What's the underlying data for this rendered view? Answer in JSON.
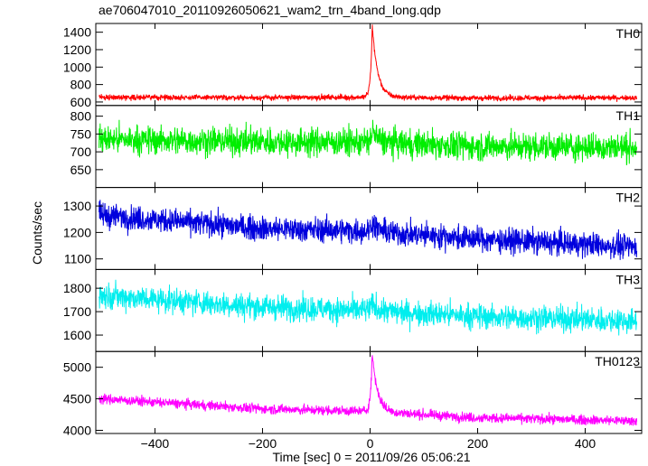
{
  "chart_data": {
    "type": "line",
    "title": "ae706047010_20110926050621_wam2_trn_4band_long.qdp",
    "xlabel": "Time [sec] 0 = 2011/09/26 05:06:21",
    "ylabel": "Counts/sec",
    "xlim": [
      -510,
      505
    ],
    "xticks": [
      -400,
      -200,
      0,
      200,
      400
    ],
    "xtick_labels": [
      "−400",
      "−200",
      "0",
      "200",
      "400"
    ],
    "panels": [
      {
        "name": "TH0",
        "color": "#ff0000",
        "ylim": [
          560,
          1500
        ],
        "yticks": [
          600,
          800,
          1000,
          1200,
          1400
        ],
        "baseline": [
          [
            -500,
            655
          ],
          [
            -200,
            650
          ],
          [
            0,
            655
          ],
          [
            200,
            645
          ],
          [
            495,
            650
          ]
        ],
        "noise": 22,
        "burst": {
          "peak_t": 4,
          "peak_value": 1480,
          "rise_sec": 3,
          "decay_sec": 10
        }
      },
      {
        "name": "TH1",
        "color": "#00ee00",
        "ylim": [
          600,
          830
        ],
        "yticks": [
          650,
          700,
          750,
          800
        ],
        "baseline": [
          [
            -500,
            735
          ],
          [
            -200,
            728
          ],
          [
            0,
            727
          ],
          [
            200,
            715
          ],
          [
            495,
            713
          ]
        ],
        "noise": 28,
        "burst": {
          "peak_t": 4,
          "peak_value": 760,
          "rise_sec": 3,
          "decay_sec": 10
        }
      },
      {
        "name": "TH2",
        "color": "#0000dd",
        "ylim": [
          1060,
          1370
        ],
        "yticks": [
          1100,
          1200,
          1300
        ],
        "baseline": [
          [
            -500,
            1265
          ],
          [
            -200,
            1215
          ],
          [
            0,
            1205
          ],
          [
            200,
            1175
          ],
          [
            495,
            1145
          ]
        ],
        "noise": 33,
        "burst": {
          "peak_t": 4,
          "peak_value": 1240,
          "rise_sec": 3,
          "decay_sec": 10
        }
      },
      {
        "name": "TH3",
        "color": "#00eeee",
        "ylim": [
          1530,
          1880
        ],
        "yticks": [
          1600,
          1700,
          1800
        ],
        "baseline": [
          [
            -500,
            1770
          ],
          [
            -200,
            1720
          ],
          [
            0,
            1705
          ],
          [
            200,
            1680
          ],
          [
            495,
            1660
          ]
        ],
        "noise": 38,
        "burst": {
          "peak_t": 4,
          "peak_value": 1730,
          "rise_sec": 3,
          "decay_sec": 10
        }
      },
      {
        "name": "TH0123",
        "color": "#ff00ff",
        "ylim": [
          3950,
          5250
        ],
        "yticks": [
          4000,
          4500,
          5000
        ],
        "baseline": [
          [
            -500,
            4500
          ],
          [
            -200,
            4340
          ],
          [
            0,
            4300
          ],
          [
            200,
            4200
          ],
          [
            495,
            4150
          ]
        ],
        "noise": 55,
        "burst": {
          "peak_t": 4,
          "peak_value": 5220,
          "rise_sec": 3,
          "decay_sec": 10
        }
      }
    ]
  }
}
